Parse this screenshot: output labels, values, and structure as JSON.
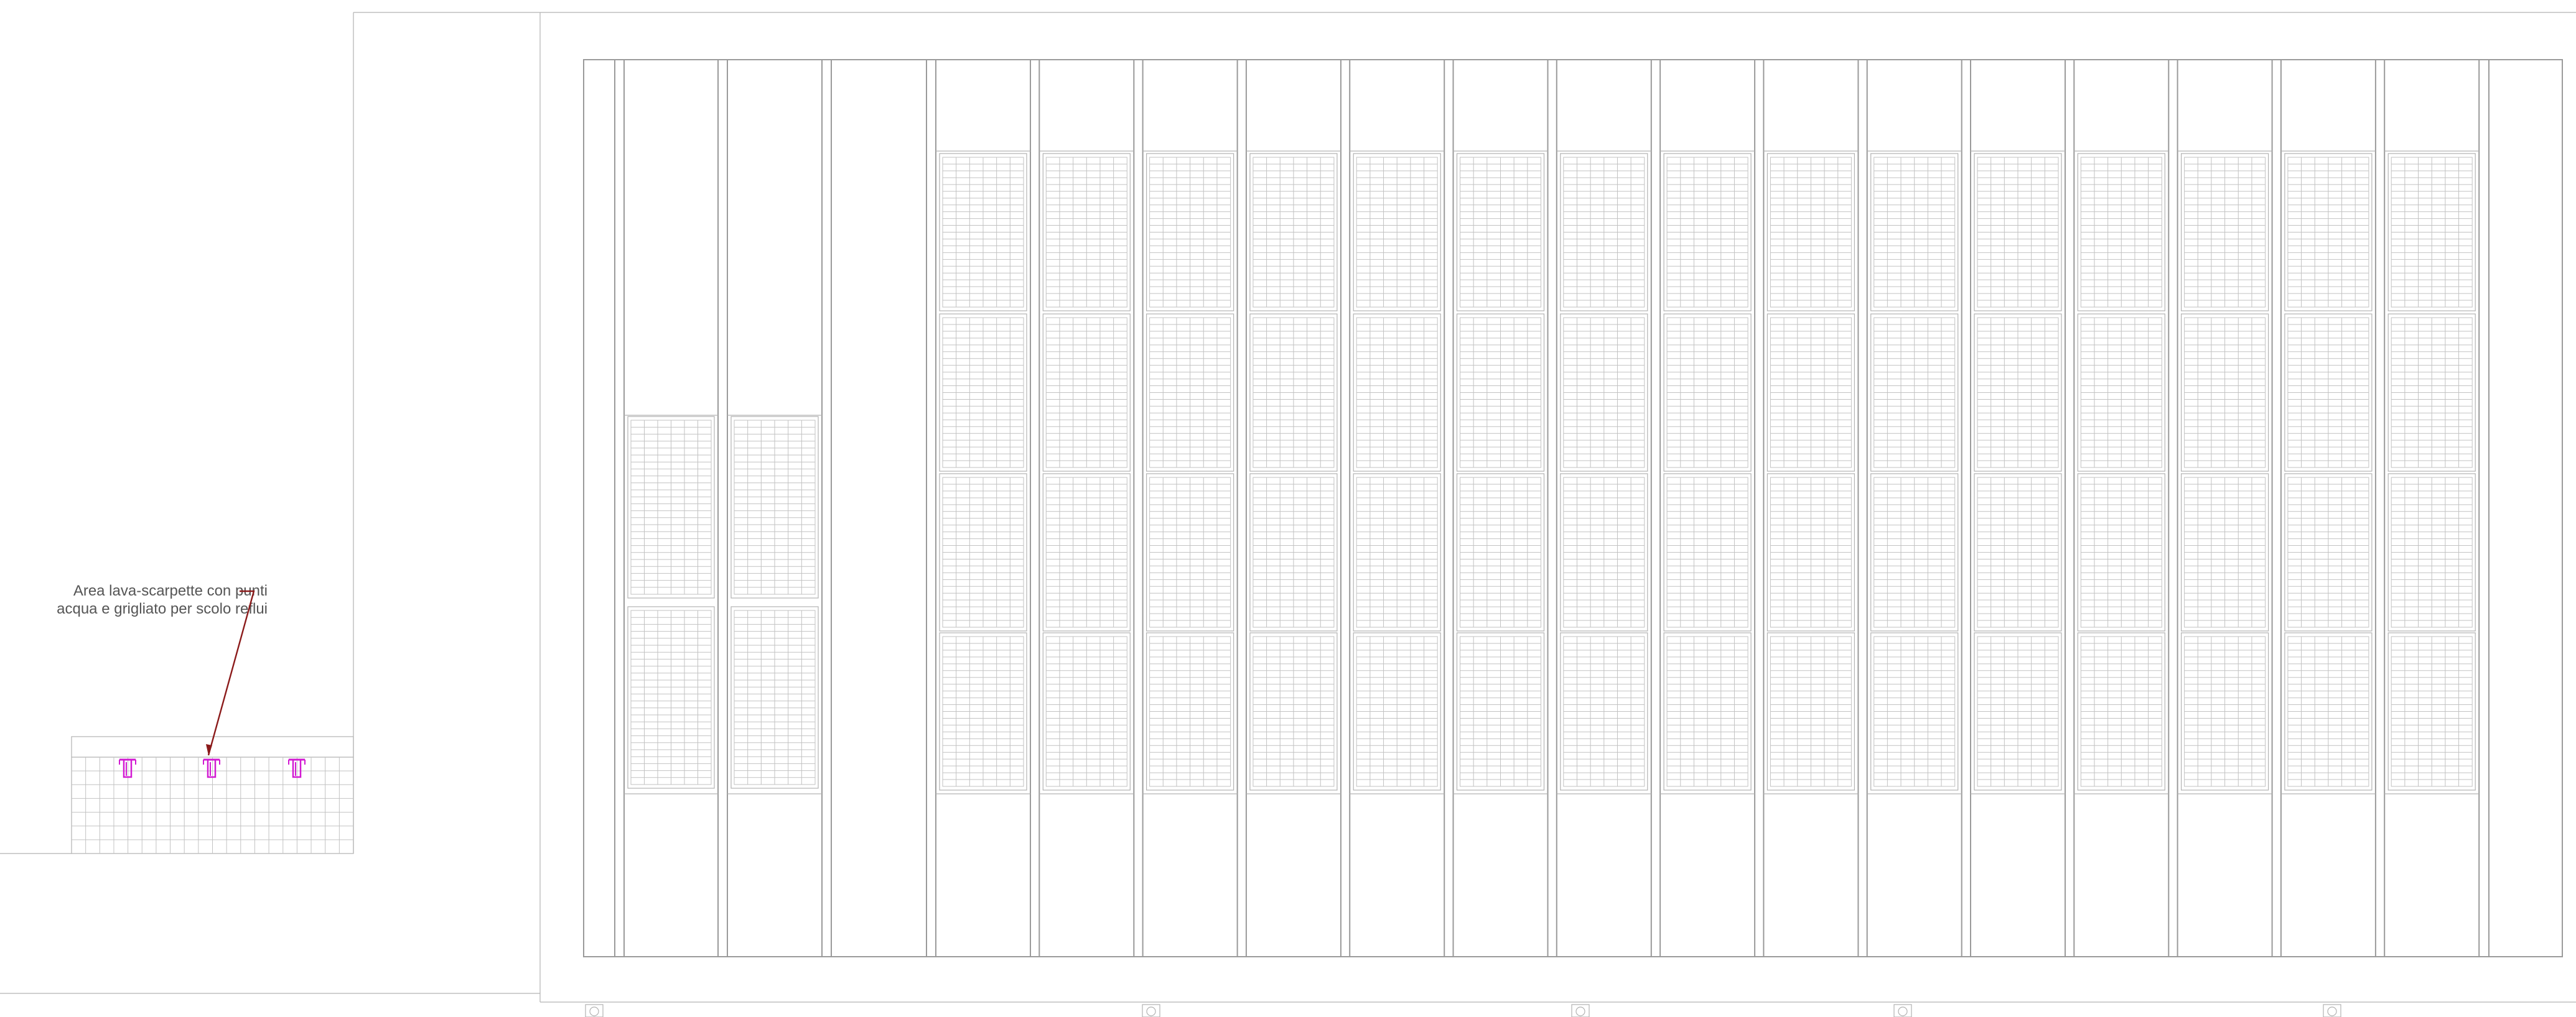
{
  "callout": {
    "line1": "Area lava-scarpette con punti",
    "line2": "acqua e grigliato per scolo reflui",
    "leader_color": "#8b1a1a"
  },
  "colors": {
    "linework": "#9a9a9a",
    "tap_symbol": "#d21ad2"
  },
  "symbols": {
    "tap_count": 3,
    "tap_icon": "water-tap-icon",
    "column_marker_icon": "column-axis-marker-icon",
    "column_marker_count": 5
  },
  "elevation": {
    "bay_count": 18,
    "rack_bays_with_4_units": 15,
    "rack_bays_with_2_units": 2,
    "empty_bays": 1
  }
}
